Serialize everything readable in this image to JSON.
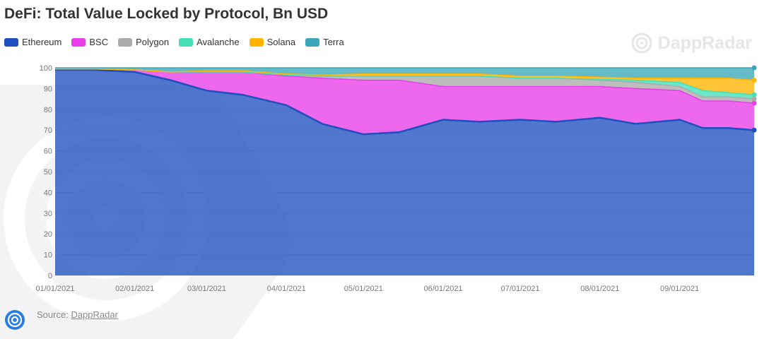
{
  "title": "DeFi: Total Value Locked by Protocol, Bn USD",
  "brand_name": "DappRadar",
  "source": {
    "label": "Source:",
    "link_text": "DappRadar"
  },
  "legend": [
    {
      "name": "Ethereum",
      "color": "#1f4fbf"
    },
    {
      "name": "BSC",
      "color": "#e83ee8"
    },
    {
      "name": "Polygon",
      "color": "#aaaaaa"
    },
    {
      "name": "Avalanche",
      "color": "#43e0b8"
    },
    {
      "name": "Solana",
      "color": "#ffb400"
    },
    {
      "name": "Terra",
      "color": "#3aa6b9"
    }
  ],
  "chart_data": {
    "type": "area",
    "stacked": true,
    "title": "DeFi: Total Value Locked by Protocol, Bn USD",
    "xlabel": "",
    "ylabel": "",
    "ylim": [
      0,
      100
    ],
    "yticks": [
      0,
      10,
      20,
      30,
      40,
      50,
      60,
      70,
      80,
      90,
      100
    ],
    "xticks": [
      "01/01/2021",
      "02/01/2021",
      "03/01/2021",
      "04/01/2021",
      "05/01/2021",
      "06/01/2021",
      "07/01/2021",
      "08/01/2021",
      "09/01/2021"
    ],
    "grid": true,
    "legend_position": "top-left",
    "x": [
      "01/01/2021",
      "01/15/2021",
      "02/01/2021",
      "02/15/2021",
      "03/01/2021",
      "03/15/2021",
      "04/01/2021",
      "04/15/2021",
      "05/01/2021",
      "05/15/2021",
      "06/01/2021",
      "06/15/2021",
      "07/01/2021",
      "07/15/2021",
      "08/01/2021",
      "08/15/2021",
      "09/01/2021",
      "09/10/2021",
      "09/20/2021",
      "09/30/2021"
    ],
    "series": [
      {
        "name": "Ethereum",
        "values": [
          99,
          99,
          98,
          94,
          89,
          87,
          82,
          73,
          68,
          69,
          75,
          74,
          75,
          74,
          76,
          73,
          75,
          71,
          71,
          70
        ]
      },
      {
        "name": "BSC",
        "values": [
          0.5,
          0.5,
          1,
          4,
          9,
          11,
          14,
          22,
          26,
          25,
          16,
          17,
          16,
          17,
          15,
          17,
          14,
          13,
          13,
          13
        ]
      },
      {
        "name": "Polygon",
        "values": [
          0,
          0,
          0,
          0,
          0,
          0,
          0.5,
          1,
          2,
          2,
          5,
          5,
          4,
          4,
          3,
          3,
          2,
          2,
          2,
          2
        ]
      },
      {
        "name": "Avalanche",
        "values": [
          0,
          0,
          0,
          0,
          0,
          0,
          0,
          0,
          0,
          0,
          0,
          0,
          0,
          0,
          0.5,
          1,
          2,
          3,
          2,
          2
        ]
      },
      {
        "name": "Solana",
        "values": [
          0,
          0,
          0,
          0,
          0.5,
          0.5,
          0.5,
          0.5,
          1,
          1,
          1,
          1,
          1,
          1,
          1,
          1,
          2,
          6,
          7,
          7
        ]
      },
      {
        "name": "Terra",
        "values": [
          0.5,
          0.5,
          1,
          2,
          1.5,
          1.5,
          3,
          3.5,
          3,
          3,
          3,
          3,
          4,
          4,
          4.5,
          5,
          5,
          5,
          5,
          6
        ]
      }
    ]
  }
}
